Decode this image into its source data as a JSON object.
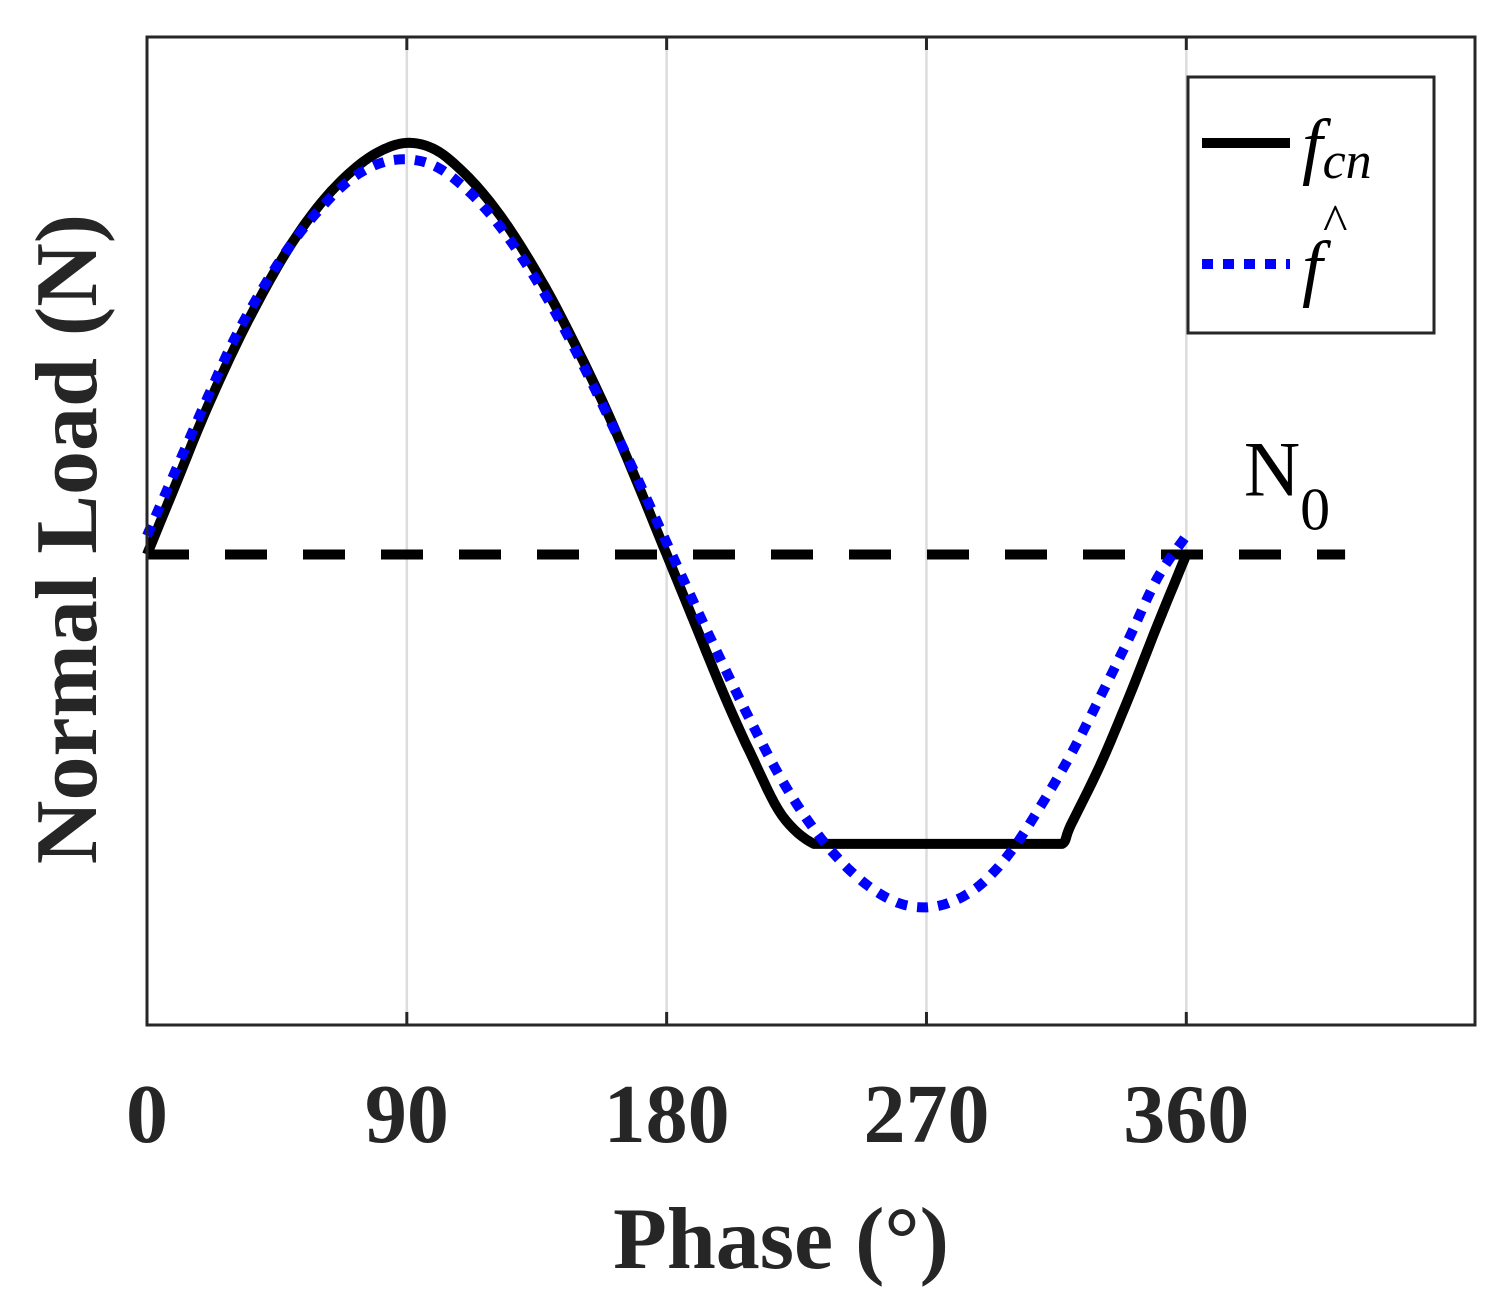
{
  "chart_data": {
    "type": "line",
    "xlabel": "Phase (°)",
    "ylabel": "Normal Load (N)",
    "xlim": [
      0,
      460
    ],
    "ylim": [
      -2.0,
      2.2
    ],
    "xticks": [
      "0",
      "90",
      "180",
      "270",
      "360"
    ],
    "xtick_values": [
      0,
      90,
      180,
      270,
      360
    ],
    "yticks": [],
    "grid": "vertical",
    "legend_position": "top-right",
    "series": [
      {
        "name": "f_cn",
        "legend_base": "f",
        "legend_sub": "cn",
        "style": "solid",
        "color": "#000000",
        "x": [
          0,
          10,
          20,
          30,
          40,
          50,
          60,
          70,
          80,
          90,
          100,
          110,
          120,
          130,
          140,
          150,
          160,
          170,
          180,
          190,
          200,
          210,
          220,
          231,
          240,
          250,
          260,
          270,
          280,
          290,
          300,
          310,
          317,
          320,
          330,
          340,
          350,
          360
        ],
        "y": [
          0,
          0.3,
          0.6,
          0.87,
          1.11,
          1.32,
          1.49,
          1.62,
          1.71,
          1.75,
          1.72,
          1.62,
          1.48,
          1.3,
          1.09,
          0.85,
          0.59,
          0.3,
          0,
          -0.3,
          -0.6,
          -0.87,
          -1.11,
          -1.23,
          -1.23,
          -1.23,
          -1.23,
          -1.23,
          -1.23,
          -1.23,
          -1.23,
          -1.23,
          -1.23,
          -1.15,
          -0.9,
          -0.61,
          -0.3,
          0
        ]
      },
      {
        "name": "f_hat",
        "legend_base": "f",
        "legend_mark": "^",
        "style": "dotted",
        "color": "#0000ff",
        "x": [
          0,
          10,
          20,
          30,
          40,
          50,
          60,
          70,
          80,
          90,
          100,
          110,
          120,
          130,
          140,
          150,
          160,
          170,
          180,
          190,
          200,
          210,
          220,
          230,
          240,
          250,
          260,
          270,
          280,
          290,
          300,
          310,
          320,
          330,
          340,
          350,
          360
        ],
        "y": [
          0.08,
          0.36,
          0.64,
          0.91,
          1.13,
          1.32,
          1.47,
          1.59,
          1.66,
          1.68,
          1.65,
          1.56,
          1.43,
          1.26,
          1.06,
          0.83,
          0.58,
          0.32,
          0.05,
          -0.22,
          -0.48,
          -0.73,
          -0.96,
          -1.15,
          -1.3,
          -1.41,
          -1.48,
          -1.5,
          -1.47,
          -1.39,
          -1.25,
          -1.06,
          -0.85,
          -0.61,
          -0.36,
          -0.1,
          0.08
        ]
      },
      {
        "name": "N0",
        "style": "dashed",
        "color": "#000000",
        "x": [
          0,
          415
        ],
        "y": [
          0,
          0
        ]
      }
    ],
    "annotations": [
      {
        "base": "N",
        "sub": "0",
        "anchor_x": 373,
        "anchor_y": 0.2
      }
    ]
  }
}
